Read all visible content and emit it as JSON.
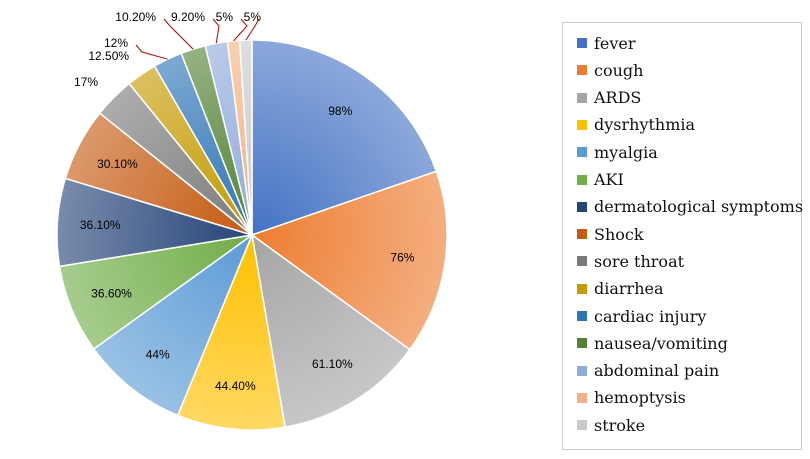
{
  "chart_data": {
    "type": "pie",
    "title": "",
    "legend_position": "right",
    "slices": [
      {
        "name": "fever",
        "label": "98%",
        "value": 98,
        "color": "#4472C4"
      },
      {
        "name": "cough",
        "label": "76%",
        "value": 76,
        "color": "#ED7D31"
      },
      {
        "name": "ARDS",
        "label": "61.10%",
        "value": 61.1,
        "color": "#A5A5A5"
      },
      {
        "name": "dysrhythmia",
        "label": "44.40%",
        "value": 44.4,
        "color": "#FFC000"
      },
      {
        "name": "myalgia",
        "label": "44%",
        "value": 44,
        "color": "#5B9BD5"
      },
      {
        "name": "AKI",
        "label": "36.60%",
        "value": 36.6,
        "color": "#70AD47"
      },
      {
        "name": "dermatological symptoms",
        "label": "36.10%",
        "value": 36.1,
        "color": "#264478"
      },
      {
        "name": "Shock",
        "label": "30.10%",
        "value": 30.1,
        "color": "#C55A11"
      },
      {
        "name": "sore throat",
        "label": "17%",
        "value": 17,
        "color": "#7B7B7B"
      },
      {
        "name": "diarrhea",
        "label": "12.50%",
        "value": 12.5,
        "color": "#C49A00"
      },
      {
        "name": "cardiac injury",
        "label": "12%",
        "value": 12,
        "color": "#2E75B6"
      },
      {
        "name": "nausea/vomiting",
        "label": "10.20%",
        "value": 10.2,
        "color": "#548235"
      },
      {
        "name": "abdominal pain",
        "label": "9.20%",
        "value": 9.2,
        "color": "#8FAADC"
      },
      {
        "name": "hemoptysis",
        "label": "5%",
        "value": 5,
        "color": "#F4B183"
      },
      {
        "name": "stroke",
        "label": "5%",
        "value": 5,
        "color": "#C9C9C9"
      }
    ]
  }
}
